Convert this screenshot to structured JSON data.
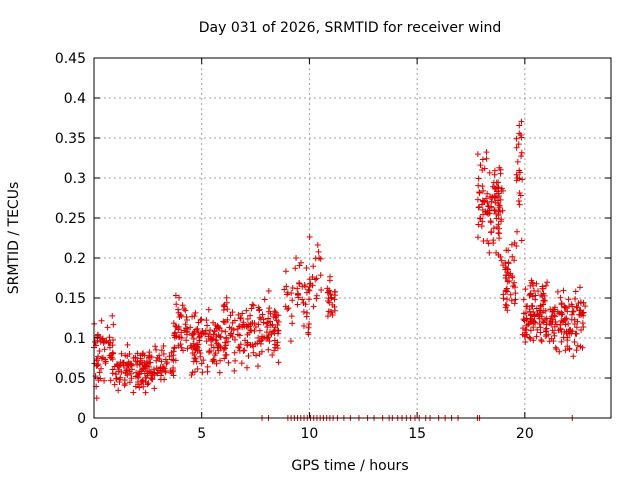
{
  "chart_data": {
    "type": "scatter",
    "title": "Day 031 of 2026, SRMTID for receiver wind",
    "xlabel": "GPS time / hours",
    "ylabel": "SRMTID / TECUs",
    "xlim": [
      0,
      24
    ],
    "ylim": [
      0,
      0.45
    ],
    "xticks": [
      0,
      5,
      10,
      15,
      20
    ],
    "xtick_labels": [
      "0",
      "5",
      "10",
      "15",
      "20"
    ],
    "yticks": [
      0,
      0.05,
      0.1,
      0.15,
      0.2,
      0.25,
      0.3,
      0.35,
      0.4,
      0.45
    ],
    "ytick_labels": [
      "0",
      "0.05",
      "0.1",
      "0.15",
      "0.2",
      "0.25",
      "0.3",
      "0.35",
      "0.4",
      "0.45"
    ],
    "grid": true,
    "marker": "+",
    "color": "#e00000",
    "series": [
      {
        "name": "SRMTID",
        "segments": [
          {
            "x_range": [
              0.0,
              1.0
            ],
            "center": 0.085,
            "spread": 0.035,
            "count": 60
          },
          {
            "x_range": [
              1.0,
              3.7
            ],
            "center": 0.062,
            "spread": 0.022,
            "count": 170
          },
          {
            "x_range": [
              3.7,
              4.4
            ],
            "center": 0.11,
            "spread": 0.03,
            "count": 45
          },
          {
            "x_range": [
              4.4,
              6.0
            ],
            "center": 0.095,
            "spread": 0.03,
            "count": 110
          },
          {
            "x_range": [
              6.0,
              7.5
            ],
            "center": 0.11,
            "spread": 0.035,
            "count": 90
          },
          {
            "x_range": [
              7.5,
              8.6
            ],
            "center": 0.11,
            "spread": 0.035,
            "count": 70
          },
          {
            "x_range": [
              8.8,
              10.0
            ],
            "center": 0.15,
            "spread": 0.045,
            "count": 45
          },
          {
            "x_range": [
              10.0,
              10.6
            ],
            "center": 0.18,
            "spread": 0.045,
            "count": 20
          },
          {
            "x_range": [
              10.8,
              11.2
            ],
            "center": 0.155,
            "spread": 0.03,
            "count": 25
          },
          {
            "x_range": [
              17.8,
              19.0
            ],
            "center": 0.265,
            "spread": 0.05,
            "count": 110
          },
          {
            "x_range": [
              19.0,
              19.6
            ],
            "center": 0.18,
            "spread": 0.035,
            "count": 45
          },
          {
            "x_range": [
              19.6,
              19.9
            ],
            "center": 0.3,
            "spread": 0.06,
            "count": 25
          },
          {
            "x_range": [
              19.9,
              21.2
            ],
            "center": 0.13,
            "spread": 0.035,
            "count": 110
          },
          {
            "x_range": [
              21.2,
              22.8
            ],
            "center": 0.12,
            "spread": 0.035,
            "count": 110
          }
        ],
        "zero_points_x": [
          7.8,
          8.1,
          9.0,
          9.15,
          9.3,
          9.45,
          9.6,
          9.75,
          9.9,
          10.05,
          10.2,
          10.35,
          10.5,
          10.65,
          10.8,
          10.95,
          11.1,
          11.3,
          11.6,
          11.9,
          12.3,
          12.7,
          13.0,
          13.4,
          13.7,
          13.85,
          14.1,
          14.3,
          14.5,
          14.7,
          14.9,
          15.1,
          15.4,
          15.6,
          16.0,
          16.3,
          16.6,
          16.9,
          17.8,
          17.9,
          22.2
        ]
      }
    ]
  }
}
